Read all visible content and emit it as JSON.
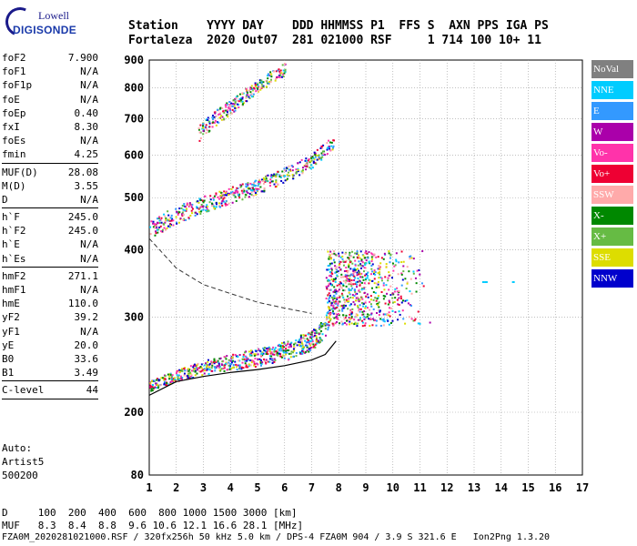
{
  "logo": {
    "brand": "Lowell",
    "product": "DIGISONDE"
  },
  "header": {
    "line1": "Station    YYYY DAY    DDD HHMMSS P1  FFS S  AXN PPS IGA PS",
    "line2": "Fortaleza  2020 Out07  281 021000 RSF     1 714 100 10+ 11"
  },
  "params": [
    {
      "name": "foF2",
      "value": "7.900"
    },
    {
      "name": "foF1",
      "value": "N/A"
    },
    {
      "name": "foF1p",
      "value": "N/A"
    },
    {
      "name": "foE",
      "value": "N/A"
    },
    {
      "name": "foEp",
      "value": "0.40"
    },
    {
      "name": "fxI",
      "value": "8.30"
    },
    {
      "name": "foEs",
      "value": "N/A"
    },
    {
      "name": "fmin",
      "value": "4.25"
    },
    {
      "sep": true
    },
    {
      "name": "MUF(D)",
      "value": "28.08"
    },
    {
      "name": "M(D)",
      "value": "3.55"
    },
    {
      "name": "D",
      "value": "N/A"
    },
    {
      "sep": true
    },
    {
      "name": "h`F",
      "value": "245.0"
    },
    {
      "name": "h`F2",
      "value": "245.0"
    },
    {
      "name": "h`E",
      "value": "N/A"
    },
    {
      "name": "h`Es",
      "value": "N/A"
    },
    {
      "sep": true
    },
    {
      "name": "hmF2",
      "value": "271.1"
    },
    {
      "name": "hmF1",
      "value": "N/A"
    },
    {
      "name": "hmE",
      "value": "110.0"
    },
    {
      "name": "yF2",
      "value": "39.2"
    },
    {
      "name": "yF1",
      "value": "N/A"
    },
    {
      "name": "yE",
      "value": "20.0"
    },
    {
      "name": "B0",
      "value": "33.6"
    },
    {
      "name": "B1",
      "value": "3.49"
    },
    {
      "sep": true
    },
    {
      "name": "C-level",
      "value": "44"
    },
    {
      "sep": true
    }
  ],
  "autoscale": {
    "label": "Auto:",
    "name": "Artist5",
    "version": "500200"
  },
  "legend": [
    {
      "label": "NoVal",
      "color": "#808080"
    },
    {
      "label": "NNE",
      "color": "#00ccff"
    },
    {
      "label": "E",
      "color": "#3399ff"
    },
    {
      "label": "W",
      "color": "#aa00aa"
    },
    {
      "label": "Vo-",
      "color": "#ff33aa"
    },
    {
      "label": "Vo+",
      "color": "#ee0033"
    },
    {
      "label": "SSW",
      "color": "#ffaaaa"
    },
    {
      "label": "X-",
      "color": "#008800"
    },
    {
      "label": "X+",
      "color": "#66bb44"
    },
    {
      "label": "SSE",
      "color": "#dddd00"
    },
    {
      "label": "NNW",
      "color": "#0000cc"
    }
  ],
  "footer": {
    "d_row": "D     100  200  400  600  800 1000 1500 3000 [km]",
    "muf_row": "MUF   8.3  8.4  8.8  9.6 10.6 12.1 16.6 28.1 [MHz]",
    "file_row": "FZA0M_2020281021000.RSF / 320fx256h 50 kHz 5.0 km / DPS-4 FZA0M 904 / 3.9 S 321.6 E   Ion2Png 1.3.20"
  },
  "chart_data": {
    "type": "scatter",
    "x_ticks": [
      "1",
      "2",
      "3",
      "4",
      "5",
      "6",
      "7",
      "8",
      "9",
      "10",
      "11",
      "12",
      "13",
      "14",
      "15",
      "16",
      "17"
    ],
    "y_ticks": [
      "80",
      "200",
      "300",
      "400",
      "500",
      "600",
      "700",
      "800",
      "900"
    ],
    "xlim": [
      1,
      17
    ],
    "y_axis_scale": "log",
    "y_tick_values": [
      200,
      300,
      400,
      500,
      600,
      700,
      800,
      900
    ],
    "y_bottom_label": "80",
    "grid": true,
    "legend_placement": "right",
    "traces": [
      {
        "kind": "ordinary_trace",
        "freq_mhz": [
          1.0,
          2.0,
          3.0,
          4.0,
          5.0,
          6.0,
          7.0,
          7.5,
          7.9
        ],
        "height_km": [
          222,
          232,
          240,
          245,
          250,
          256,
          268,
          285,
          330
        ]
      },
      {
        "kind": "second_hop",
        "freq_mhz": [
          1.0,
          2.0,
          3.0,
          4.0,
          5.0,
          6.0,
          7.0,
          7.8
        ],
        "height_km": [
          430,
          460,
          480,
          500,
          520,
          545,
          580,
          630
        ]
      },
      {
        "kind": "third_hop",
        "freq_mhz": [
          2.8,
          3.5,
          4.0,
          5.0,
          6.0
        ],
        "height_km": [
          650,
          700,
          730,
          800,
          860
        ]
      },
      {
        "kind": "spread_f",
        "freq_mhz": [
          7.5,
          11.5
        ],
        "height_km": [
          290,
          400
        ]
      }
    ],
    "profile_curve": {
      "freq_mhz": [
        1.0,
        2.0,
        3.0,
        4.0,
        5.0,
        6.0,
        7.0,
        7.5,
        7.9
      ],
      "height_km": [
        215,
        228,
        233,
        237,
        240,
        244,
        250,
        256,
        271
      ]
    },
    "muf_curve": {
      "freq_mhz": [
        1.0,
        2.0,
        3.0,
        4.0,
        5.0,
        6.0,
        7.0
      ],
      "height_km": [
        420,
        370,
        345,
        332,
        320,
        312,
        305
      ]
    }
  }
}
